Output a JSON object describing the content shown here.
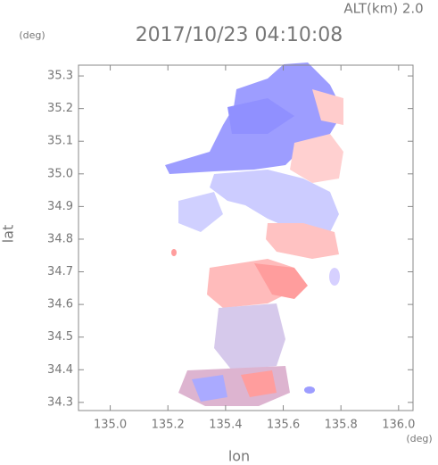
{
  "chart_data": {
    "type": "map",
    "title": "2017/10/23 04:10:08",
    "subtitle": "ALT(km) 2.0",
    "x_label": "lon",
    "y_label": "lat",
    "x_unit": "(deg)",
    "y_unit": "(deg)",
    "xlim": [
      134.89,
      136.05
    ],
    "ylim": [
      34.275,
      35.333
    ],
    "xticks": [
      {
        "value": 135.0,
        "label": "135.0"
      },
      135.2,
      135.4,
      135.6,
      135.8,
      {
        "value": 136.0,
        "label": "136.0"
      }
    ],
    "yticks": [
      34.3,
      34.4,
      34.5,
      34.6,
      34.7,
      34.8,
      34.9,
      {
        "value": 35.0,
        "label": "35.0"
      },
      35.1,
      35.2,
      35.3
    ]
  }
}
